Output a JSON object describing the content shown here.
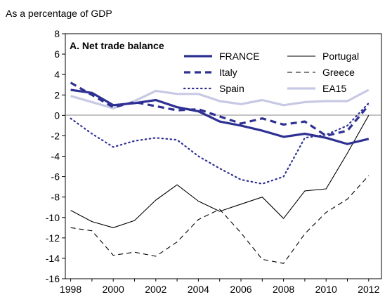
{
  "chart_data": {
    "type": "line",
    "unit_label": "As a percentage of GDP",
    "title": "A. Net trade balance",
    "x": [
      1998,
      1999,
      2000,
      2001,
      2002,
      2003,
      2004,
      2005,
      2006,
      2007,
      2008,
      2009,
      2010,
      2011,
      2012
    ],
    "x_ticks": [
      "1998",
      "2000",
      "2002",
      "2004",
      "2006",
      "2008",
      "2010",
      "2012"
    ],
    "ylim": [
      -16,
      8
    ],
    "y_ticks": [
      "8",
      "6",
      "4",
      "2",
      "0",
      "-2",
      "-4",
      "-6",
      "-8",
      "-10",
      "-12",
      "-14",
      "-16"
    ],
    "zero_line": true,
    "grid": false,
    "legend_position": "top-right",
    "series": [
      {
        "name": "FRANCE",
        "color": "#2e3192",
        "style": "solid-thick",
        "values": [
          2.5,
          2.2,
          1.0,
          1.2,
          1.5,
          0.8,
          0.4,
          -0.6,
          -1.0,
          -1.5,
          -2.1,
          -1.8,
          -2.2,
          -2.8,
          -2.3
        ]
      },
      {
        "name": "Italy",
        "color": "#2e3192",
        "style": "dashed-thick",
        "values": [
          3.2,
          2.0,
          0.8,
          1.3,
          0.9,
          0.5,
          0.6,
          -0.1,
          -0.8,
          -0.3,
          -0.9,
          -0.6,
          -2.0,
          -1.5,
          1.0
        ]
      },
      {
        "name": "Spain",
        "color": "#2e3192",
        "style": "dotted",
        "values": [
          -0.3,
          -1.8,
          -3.1,
          -2.5,
          -2.2,
          -2.4,
          -4.0,
          -5.2,
          -6.3,
          -6.7,
          -6.0,
          -2.2,
          -1.9,
          -1.0,
          1.2
        ]
      },
      {
        "name": "Portugal",
        "color": "#000000",
        "style": "solid-thin",
        "values": [
          -9.3,
          -10.4,
          -11.0,
          -10.3,
          -8.3,
          -6.8,
          -8.4,
          -9.4,
          -8.7,
          -8.0,
          -10.1,
          -7.4,
          -7.2,
          -3.7,
          0.0
        ]
      },
      {
        "name": "Greece",
        "color": "#000000",
        "style": "dashed-thin",
        "values": [
          -11.0,
          -11.3,
          -13.7,
          -13.4,
          -13.8,
          -12.4,
          -10.2,
          -9.2,
          -11.5,
          -14.1,
          -14.5,
          -11.6,
          -9.5,
          -8.2,
          -5.9
        ]
      },
      {
        "name": "EA15",
        "color": "#c7c9e4",
        "style": "solid-thick",
        "values": [
          1.9,
          1.3,
          0.7,
          1.4,
          2.4,
          2.1,
          2.1,
          1.4,
          1.1,
          1.5,
          1.0,
          1.3,
          1.4,
          1.4,
          2.5
        ]
      }
    ]
  }
}
